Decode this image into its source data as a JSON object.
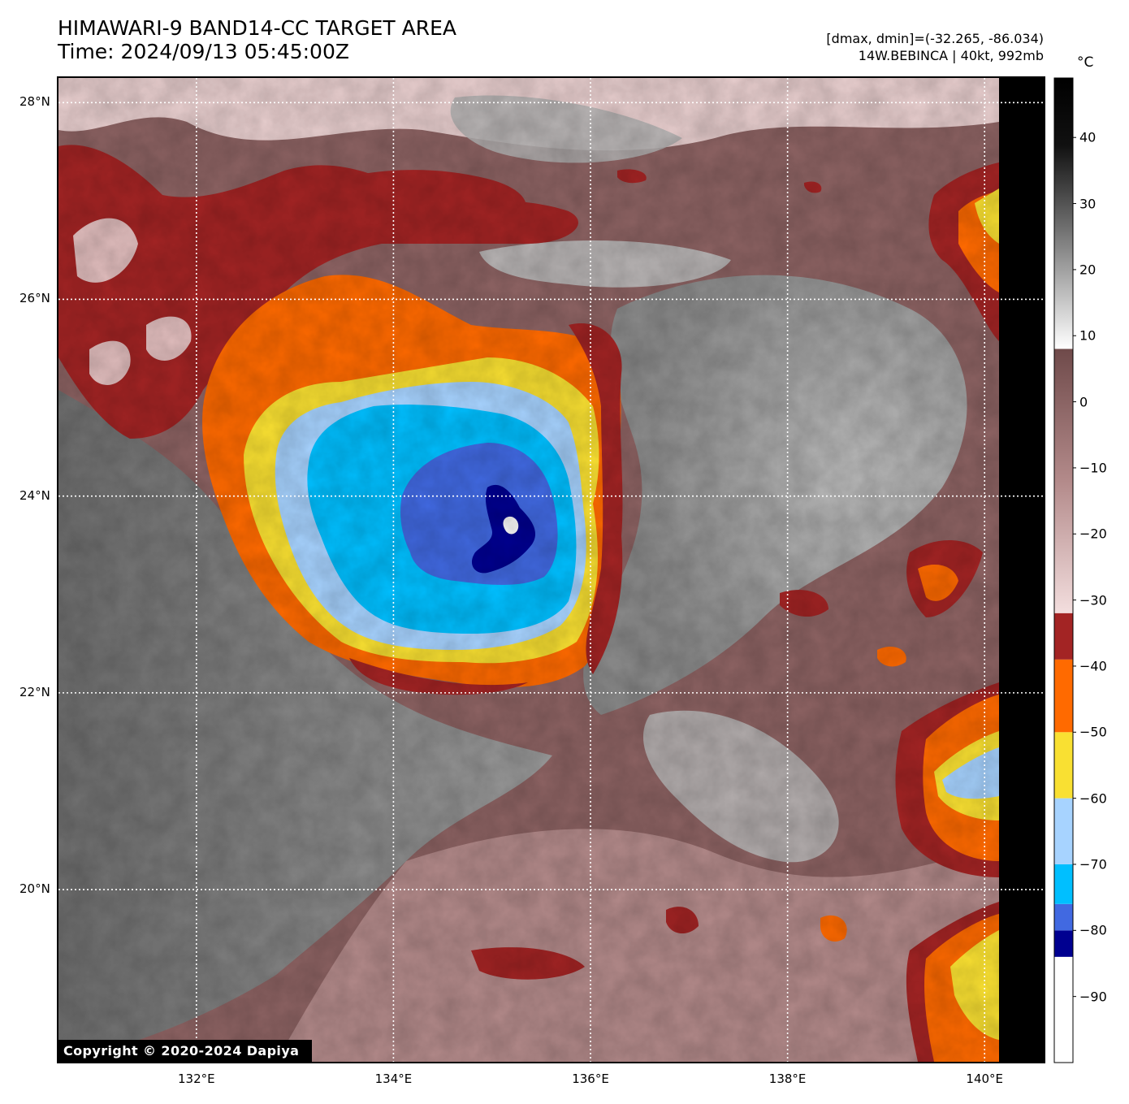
{
  "header": {
    "title_line1": "HIMAWARI-9 BAND14-CC TARGET AREA",
    "title_line2": "Time: 2024/09/13 05:45:00Z",
    "range_text": "[dmax, dmin]=(-32.265, -86.034)",
    "storm_text": "14W.BEBINCA | 40kt, 992mb"
  },
  "axes": {
    "lat_labels": [
      "28°N",
      "26°N",
      "24°N",
      "22°N",
      "20°N"
    ],
    "lon_labels": [
      "132°E",
      "134°E",
      "136°E",
      "138°E",
      "140°E"
    ],
    "lat_values": [
      28,
      26,
      24,
      22,
      20
    ],
    "lon_values": [
      132,
      134,
      136,
      138,
      140
    ],
    "lat_range": [
      18.25,
      28.25
    ],
    "lon_range": [
      130.6,
      140.6
    ],
    "grid": true
  },
  "colorbar": {
    "unit": "°C",
    "ticks": [
      "40",
      "30",
      "20",
      "10",
      "0",
      "−10",
      "−20",
      "−30",
      "−40",
      "−50",
      "−60",
      "−70",
      "−80",
      "−90"
    ],
    "tick_values": [
      40,
      30,
      20,
      10,
      0,
      -10,
      -20,
      -30,
      -40,
      -50,
      -60,
      -70,
      -80,
      -90
    ],
    "range": [
      -100,
      49
    ],
    "segments": [
      {
        "from": -100,
        "to": -84,
        "color": "#ffffff"
      },
      {
        "from": -84,
        "to": -80,
        "color": "#000090"
      },
      {
        "from": -80,
        "to": -76,
        "color": "#4169e1"
      },
      {
        "from": -76,
        "to": -70,
        "color": "#00bfff"
      },
      {
        "from": -70,
        "to": -60,
        "color": "#a7d3ff"
      },
      {
        "from": -60,
        "to": -50,
        "color": "#f9e032"
      },
      {
        "from": -50,
        "to": -39,
        "color": "#ff6a00"
      },
      {
        "from": -39,
        "to": -32,
        "color": "#a32424"
      }
    ]
  },
  "map": {
    "storm_center": {
      "lon": 135.2,
      "lat": 23.8
    },
    "colors": {
      "gray_light": "#d6d6d6",
      "gray_mid": "#8c8c8c",
      "gray_dark": "#4a4a4a",
      "brown_light": "#e9cfcf",
      "brown_mid": "#9a6e6e",
      "brown_dark": "#5c3a3a",
      "red": "#a32424",
      "orange": "#ff6a00",
      "yellow": "#f9e032",
      "pale_blue": "#a7d3ff",
      "cyan": "#00bfff",
      "royal_blue": "#4169e1",
      "navy": "#000090",
      "white": "#ffffff",
      "offscan": "#000000"
    }
  },
  "copyright": "Copyright © 2020-2024 Dapiya"
}
